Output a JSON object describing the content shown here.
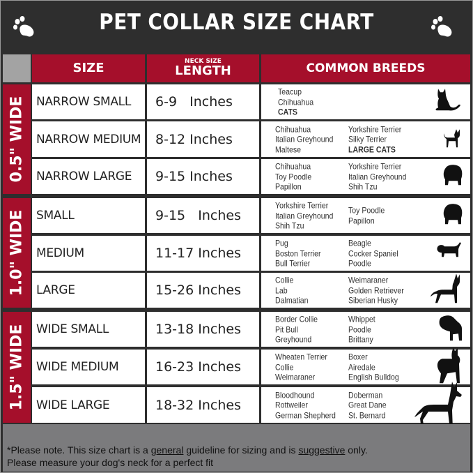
{
  "title": "PET COLLAR SIZE CHART",
  "headers": {
    "size": "SIZE",
    "neck_small": "NECK SIZE",
    "length": "LENGTH",
    "breeds": "COMMON BREEDS"
  },
  "groups": [
    "0.5\" WIDE",
    "1.0\" WIDE",
    "1.5\" WIDE"
  ],
  "rows": [
    {
      "size": "NARROW SMALL",
      "length": "6-9   Inches",
      "col1": [
        "Teacup",
        "Chihuahua",
        "CATS"
      ],
      "col2": [],
      "animal": "cat-icon"
    },
    {
      "size": "NARROW MEDIUM",
      "length": "8-12 Inches",
      "col1": [
        "Chihuahua",
        "Italian Greyhound",
        "Maltese"
      ],
      "col2": [
        "Yorkshire Terrier",
        "Silky Terrier",
        "LARGE CATS"
      ],
      "animal": "chihuahua-icon"
    },
    {
      "size": "NARROW LARGE",
      "length": "9-15 Inches",
      "col1": [
        "Chihuahua",
        "Toy Poodle",
        "Papillon"
      ],
      "col2": [
        "Yorkshire Terrier",
        "Italian Greyhound",
        "Shih Tzu"
      ],
      "animal": "fluffy-dog-icon"
    },
    {
      "size": "SMALL",
      "length": "9-15   Inches",
      "col1": [
        "Yorkshire Terrier",
        "Italian Greyhound",
        "Shih Tzu"
      ],
      "col2": [
        "Toy Poodle",
        "Papillon"
      ],
      "animal": "fluffy-dog-icon"
    },
    {
      "size": "MEDIUM",
      "length": "11-17 Inches",
      "col1": [
        "Pug",
        "Boston Terrier",
        "Bull Terrier"
      ],
      "col2": [
        "Beagle",
        "Cocker Spaniel",
        "Poodle"
      ],
      "animal": "dachshund-icon"
    },
    {
      "size": "LARGE",
      "length": "15-26 Inches",
      "col1": [
        "Collie",
        "Lab",
        "Dalmatian"
      ],
      "col2": [
        "Weimaraner",
        "Golden Retriever",
        "Siberian Husky"
      ],
      "animal": "shepherd-dog-icon"
    },
    {
      "size": "WIDE SMALL",
      "length": "13-18 Inches",
      "col1": [
        "Border Collie",
        "Pit Bull",
        "Greyhound"
      ],
      "col2": [
        "Whippet",
        "Poodle",
        "Brittany"
      ],
      "animal": "bulldog-icon"
    },
    {
      "size": "WIDE MEDIUM",
      "length": "16-23 Inches",
      "col1": [
        "Wheaten Terrier",
        "Collie",
        "Weimaraner"
      ],
      "col2": [
        "Boxer",
        "Airedale",
        "English Bulldog"
      ],
      "animal": "pitbull-icon"
    },
    {
      "size": "WIDE LARGE",
      "length": "18-32 Inches",
      "col1": [
        "Bloodhound",
        "Rottweiler",
        "German Shepherd"
      ],
      "col2": [
        "Doberman",
        "Great Dane",
        "St. Bernard"
      ],
      "animal": "doberman-icon"
    }
  ],
  "footer": {
    "l1a": "*Please note. This size chart is a ",
    "l1b": "general",
    "l1c": " guideline for sizing and is ",
    "l1d": "suggestive",
    "l1e": " only.",
    "l2": "Please measure your dog's neck for a perfect fit"
  },
  "colors": {
    "red": "#a50f2b",
    "dark": "#2e2e2e",
    "gray": "#7b7b7d"
  }
}
